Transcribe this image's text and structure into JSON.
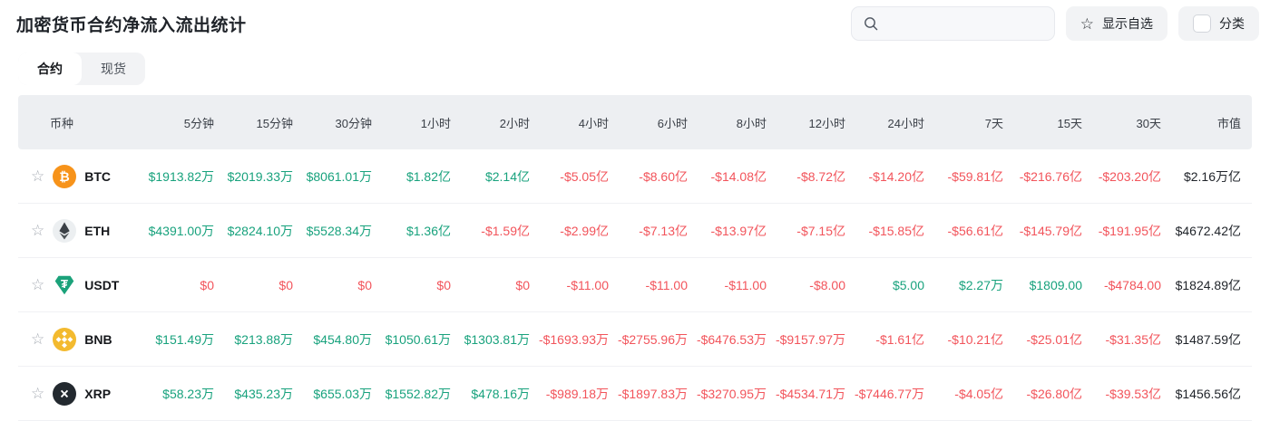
{
  "page": {
    "title": "加密货币合约净流入流出统计"
  },
  "toolbar": {
    "search_placeholder": "",
    "show_watchlist_label": "显示自选",
    "category_label": "分类"
  },
  "tabs": [
    {
      "label": "合约",
      "active": true
    },
    {
      "label": "现货",
      "active": false
    }
  ],
  "colors": {
    "up": "#18a27d",
    "down": "#f2545b",
    "cap": "#1f2329",
    "header_bg": "#edeff2"
  },
  "icons": {
    "btc": {
      "bg": "#f7931a",
      "fg": "#ffffff"
    },
    "eth": {
      "bg": "#eceff1",
      "fg": "#3b4046"
    },
    "usdt": {
      "bg": "#1ba27a",
      "fg": "#ffffff"
    },
    "bnb": {
      "bg": "#f3ba2f",
      "fg": "#ffffff"
    },
    "xrp": {
      "bg": "#23292f",
      "fg": "#ffffff"
    }
  },
  "table": {
    "columns": [
      "币种",
      "5分钟",
      "15分钟",
      "30分钟",
      "1小时",
      "2小时",
      "4小时",
      "6小时",
      "8小时",
      "12小时",
      "24小时",
      "7天",
      "15天",
      "30天",
      "市值"
    ],
    "rows": [
      {
        "coin": "BTC",
        "icon": "btc",
        "values": [
          "$1913.82万",
          "$2019.33万",
          "$8061.01万",
          "$1.82亿",
          "$2.14亿",
          "-$5.05亿",
          "-$8.60亿",
          "-$14.08亿",
          "-$8.72亿",
          "-$14.20亿",
          "-$59.81亿",
          "-$216.76亿",
          "-$203.20亿",
          "$2.16万亿"
        ],
        "trend": [
          "up",
          "up",
          "up",
          "up",
          "up",
          "down",
          "down",
          "down",
          "down",
          "down",
          "down",
          "down",
          "down",
          "cap"
        ]
      },
      {
        "coin": "ETH",
        "icon": "eth",
        "values": [
          "$4391.00万",
          "$2824.10万",
          "$5528.34万",
          "$1.36亿",
          "-$1.59亿",
          "-$2.99亿",
          "-$7.13亿",
          "-$13.97亿",
          "-$7.15亿",
          "-$15.85亿",
          "-$56.61亿",
          "-$145.79亿",
          "-$191.95亿",
          "$4672.42亿"
        ],
        "trend": [
          "up",
          "up",
          "up",
          "up",
          "down",
          "down",
          "down",
          "down",
          "down",
          "down",
          "down",
          "down",
          "down",
          "cap"
        ]
      },
      {
        "coin": "USDT",
        "icon": "usdt",
        "values": [
          "$0",
          "$0",
          "$0",
          "$0",
          "$0",
          "-$11.00",
          "-$11.00",
          "-$11.00",
          "-$8.00",
          "$5.00",
          "$2.27万",
          "$1809.00",
          "-$4784.00",
          "$1824.89亿"
        ],
        "trend": [
          "down",
          "down",
          "down",
          "down",
          "down",
          "down",
          "down",
          "down",
          "down",
          "up",
          "up",
          "up",
          "down",
          "cap"
        ]
      },
      {
        "coin": "BNB",
        "icon": "bnb",
        "values": [
          "$151.49万",
          "$213.88万",
          "$454.80万",
          "$1050.61万",
          "$1303.81万",
          "-$1693.93万",
          "-$2755.96万",
          "-$6476.53万",
          "-$9157.97万",
          "-$1.61亿",
          "-$10.21亿",
          "-$25.01亿",
          "-$31.35亿",
          "$1487.59亿"
        ],
        "trend": [
          "up",
          "up",
          "up",
          "up",
          "up",
          "down",
          "down",
          "down",
          "down",
          "down",
          "down",
          "down",
          "down",
          "cap"
        ]
      },
      {
        "coin": "XRP",
        "icon": "xrp",
        "values": [
          "$58.23万",
          "$435.23万",
          "$655.03万",
          "$1552.82万",
          "$478.16万",
          "-$989.18万",
          "-$1897.83万",
          "-$3270.95万",
          "-$4534.71万",
          "-$7446.77万",
          "-$4.05亿",
          "-$26.80亿",
          "-$39.53亿",
          "$1456.56亿"
        ],
        "trend": [
          "up",
          "up",
          "up",
          "up",
          "up",
          "down",
          "down",
          "down",
          "down",
          "down",
          "down",
          "down",
          "down",
          "cap"
        ]
      }
    ]
  }
}
